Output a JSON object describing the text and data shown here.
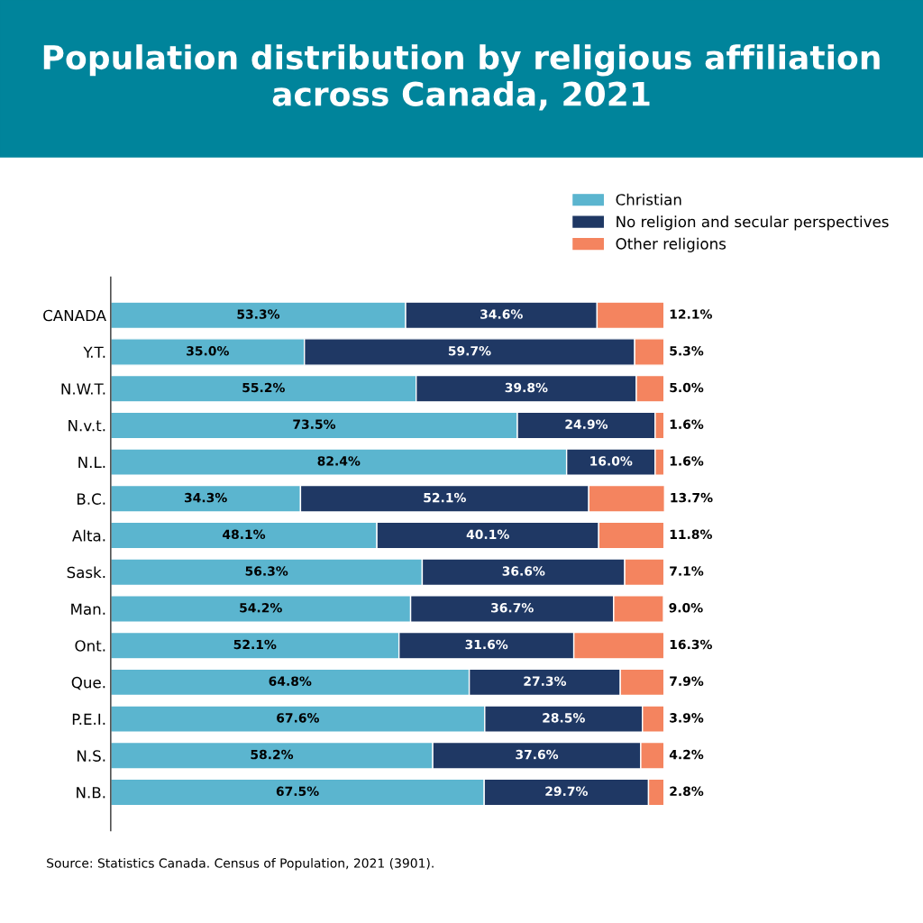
{
  "chart_data": {
    "type": "bar",
    "orientation": "horizontal",
    "stacked": true,
    "legend": "top right",
    "grid": false,
    "tick_labels": "y",
    "title": "Population distribution by religious affiliation across Canada, 2021",
    "categories": [
      "CANADA",
      "Y.T.",
      "N.W.T.",
      "N.v.t.",
      "N.L.",
      "B.C.",
      "Alta.",
      "Sask.",
      "Man.",
      "Ont.",
      "Que.",
      "P.E.I.",
      "N.S.",
      "N.B."
    ],
    "series": [
      {
        "name": "Christian",
        "color": "#5bb5cf",
        "values": [
          53.3,
          35.0,
          55.2,
          73.5,
          82.4,
          34.3,
          48.1,
          56.3,
          54.2,
          52.1,
          64.8,
          67.6,
          58.2,
          67.5
        ],
        "value_labels": [
          "53.3%",
          "35.0%",
          "55.2%",
          "73.5%",
          "82.4%",
          "34.3%",
          "48.1%",
          "56.3%",
          "54.2%",
          "52.1%",
          "64.8%",
          "67.6%",
          "58.2%",
          "67.5%"
        ]
      },
      {
        "name": "No religion and secular perspectives",
        "color": "#1f3864",
        "values": [
          34.6,
          59.7,
          39.8,
          24.9,
          16.0,
          52.1,
          40.1,
          36.6,
          36.7,
          31.6,
          27.3,
          28.5,
          37.6,
          29.7
        ],
        "value_labels": [
          "34.6%",
          "59.7%",
          "39.8%",
          "24.9%",
          "16.0%",
          "52.1%",
          "40.1%",
          "36.6%",
          "36.7%",
          "31.6%",
          "27.3%",
          "28.5%",
          "37.6%",
          "29.7%"
        ]
      },
      {
        "name": "Other religions",
        "color": "#f4845f",
        "values": [
          12.1,
          5.3,
          5.0,
          1.6,
          1.6,
          13.7,
          11.8,
          7.1,
          9.0,
          16.3,
          7.9,
          3.9,
          4.2,
          2.8
        ],
        "value_labels": [
          "12.1%",
          "5.3%",
          "5.0%",
          "1.6%",
          "1.6%",
          "13.7%",
          "11.8%",
          "7.1%",
          "9.0%",
          "16.3%",
          "7.9%",
          "3.9%",
          "4.2%",
          "2.8%"
        ]
      }
    ],
    "annotations": [
      "Source: Statistics Canada. Census of Population, 2021 (3901)."
    ]
  }
}
